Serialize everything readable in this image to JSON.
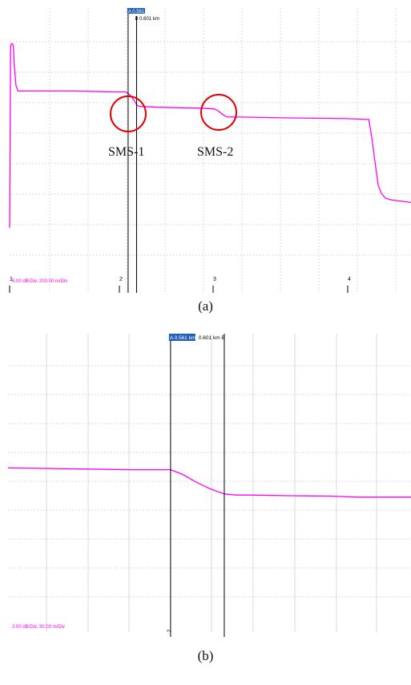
{
  "colors": {
    "trace": "#ff00ff",
    "grid": "#cfcfcf",
    "marker_circle": "#e00000",
    "cursor_line": "#000000",
    "cursor_a_bg": "#1f5fb8"
  },
  "chart_data": [
    {
      "type": "line",
      "panel": "a",
      "caption": "(a)",
      "scale_label": "5.00 dB/Div, 200.00 m/Div",
      "cursor_a_label": "A 0.561 km",
      "cursor_b_label": "B 0.601 km",
      "cursor_a_km": 0.561,
      "cursor_b_km": 0.601,
      "event_numbers": [
        "1",
        "2",
        "3",
        "4"
      ],
      "annotations": [
        "SMS-1",
        "SMS-2"
      ],
      "grid": true,
      "xlim": [
        0.0,
        1.9
      ],
      "ylim": [
        0,
        35
      ],
      "series": [
        {
          "x": [
            0.0,
            0.005,
            0.008,
            0.014,
            0.018,
            0.022,
            0.03,
            0.04,
            0.06,
            0.08,
            0.3,
            0.5,
            0.55,
            0.57,
            0.59,
            0.605,
            0.62,
            0.7,
            0.9,
            0.97,
            0.99,
            1.01,
            1.03,
            1.1,
            1.3,
            1.6,
            1.7,
            1.715,
            1.73,
            1.745,
            1.76,
            1.78,
            1.81,
            1.9
          ],
          "y": [
            8.0,
            30.2,
            30.6,
            30.6,
            30.3,
            28.0,
            25.5,
            24.8,
            24.8,
            24.8,
            24.8,
            24.7,
            24.7,
            24.3,
            23.6,
            23.0,
            22.9,
            22.8,
            22.7,
            22.6,
            22.3,
            21.9,
            21.6,
            21.6,
            21.5,
            21.4,
            21.3,
            19.0,
            16.0,
            13.2,
            12.2,
            11.6,
            11.4,
            11.1
          ]
        }
      ]
    },
    {
      "type": "line",
      "panel": "b",
      "caption": "(b)",
      "scale_label": "2.00 dB/Div, 30.00 m/Div",
      "cursor_a_label": "A 0.561 km",
      "cursor_b_label": "0.601 km B",
      "cursor_a_km": 0.561,
      "cursor_b_km": 0.601,
      "event_number": "2",
      "grid": true,
      "xlim": [
        0.44,
        0.74
      ],
      "ylim": [
        0,
        14
      ],
      "series": [
        {
          "x": [
            0.44,
            0.5,
            0.53,
            0.561,
            0.57,
            0.58,
            0.59,
            0.601,
            0.61,
            0.62,
            0.65,
            0.68,
            0.7,
            0.72,
            0.74
          ],
          "y": [
            7.8,
            7.75,
            7.72,
            7.72,
            7.5,
            7.15,
            6.85,
            6.6,
            6.55,
            6.55,
            6.52,
            6.5,
            6.45,
            6.45,
            6.45
          ]
        }
      ]
    }
  ]
}
